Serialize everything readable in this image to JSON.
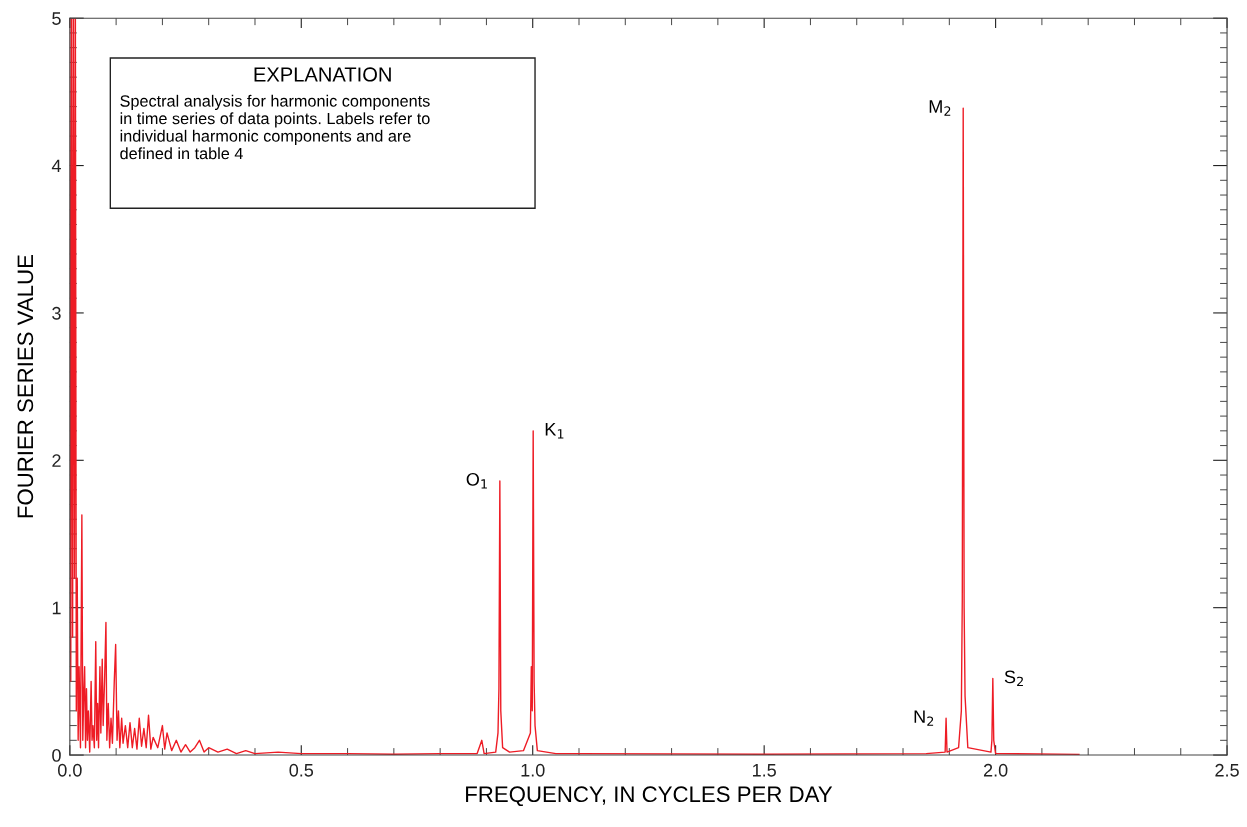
{
  "chart_data": {
    "type": "line",
    "xlabel": "FREQUENCY, IN CYCLES PER DAY",
    "ylabel": "FOURIER SERIES VALUE",
    "xlim": [
      0,
      2.5
    ],
    "ylim": [
      0,
      5
    ],
    "xticks": [
      {
        "value": 0,
        "label": "0.0"
      },
      {
        "value": 0.5,
        "label": "0.5"
      },
      {
        "value": 1,
        "label": "1.0"
      },
      {
        "value": 1.5,
        "label": "1.5"
      },
      {
        "value": 2,
        "label": "2.0"
      },
      {
        "value": 2.5,
        "label": "2.5"
      }
    ],
    "yticks": [
      0,
      1,
      2,
      3,
      4,
      5
    ],
    "grid": false,
    "marker": "none",
    "line_style": "solid",
    "annotations": [
      "EXPLANATION",
      "Spectral analysis for harmonic components\nin time series of data points. Labels refer to\nindividual harmonic components and are\ndefined in table 4",
      {
        "text": "O$_{1}$",
        "x": 0.929,
        "y": 1.86
      },
      {
        "text": "K$_{1}$",
        "x": 1.001,
        "y": 2.2
      },
      {
        "text": "N$_{2}$",
        "x": 1.893,
        "y": 0.25
      },
      {
        "text": "M$_{2}$",
        "x": 1.93,
        "y": 4.39
      },
      {
        "text": "S$_{2}$",
        "x": 1.994,
        "y": 0.52
      }
    ],
    "series": [
      {
        "color": "#ee1c25",
        "x": [
          0,
          0.002,
          0.004,
          0.006,
          0.008,
          0.01,
          0.012,
          0.014,
          0.016,
          0.018,
          0.02,
          0.023,
          0.026,
          0.028,
          0.03,
          0.032,
          0.034,
          0.036,
          0.038,
          0.04,
          0.043,
          0.046,
          0.048,
          0.05,
          0.053,
          0.056,
          0.058,
          0.06,
          0.062,
          0.065,
          0.067,
          0.07,
          0.072,
          0.075,
          0.078,
          0.08,
          0.083,
          0.086,
          0.089,
          0.092,
          0.096,
          0.099,
          0.102,
          0.105,
          0.108,
          0.112,
          0.115,
          0.12,
          0.125,
          0.13,
          0.135,
          0.14,
          0.145,
          0.15,
          0.155,
          0.16,
          0.165,
          0.17,
          0.175,
          0.18,
          0.19,
          0.2,
          0.205,
          0.21,
          0.22,
          0.23,
          0.24,
          0.25,
          0.26,
          0.27,
          0.28,
          0.29,
          0.3,
          0.32,
          0.34,
          0.36,
          0.38,
          0.4,
          0.45,
          0.5,
          0.6,
          0.7,
          0.8,
          0.88,
          0.89,
          0.895,
          0.92,
          0.925,
          0.927,
          0.929,
          0.931,
          0.935,
          0.95,
          0.98,
          0.995,
          0.997,
          0.999,
          1.001,
          1.003,
          1.005,
          1.01,
          1.05,
          1.1,
          1.5,
          1.85,
          1.891,
          1.893,
          1.895,
          1.92,
          1.926,
          1.928,
          1.93,
          1.932,
          1.934,
          1.94,
          1.99,
          1.992,
          1.994,
          1.996,
          2.0,
          2.18
        ],
        "values": [
          5,
          0.5,
          5,
          0.8,
          5,
          1.2,
          5,
          0.3,
          1.2,
          0.1,
          0.6,
          0.05,
          1.63,
          0.1,
          0.4,
          0.6,
          0.05,
          0.45,
          0.1,
          0.3,
          0.02,
          0.5,
          0.1,
          0.2,
          0.05,
          0.77,
          0.1,
          0.35,
          0.05,
          0.6,
          0.15,
          0.65,
          0.2,
          0.5,
          0.9,
          0.1,
          0.35,
          0.05,
          0.25,
          0.08,
          0.5,
          0.75,
          0.1,
          0.3,
          0.05,
          0.25,
          0.08,
          0.2,
          0.05,
          0.22,
          0.05,
          0.18,
          0.04,
          0.25,
          0.06,
          0.18,
          0.05,
          0.27,
          0.04,
          0.12,
          0.05,
          0.2,
          0.04,
          0.15,
          0.03,
          0.1,
          0.02,
          0.07,
          0.02,
          0.05,
          0.1,
          0.02,
          0.05,
          0.02,
          0.04,
          0.01,
          0.03,
          0.01,
          0.02,
          0.01,
          0.01,
          0.005,
          0.01,
          0.01,
          0.1,
          0.01,
          0.02,
          0.15,
          0.45,
          1.86,
          0.3,
          0.05,
          0.02,
          0.03,
          0.15,
          0.6,
          0.3,
          2.2,
          0.5,
          0.2,
          0.03,
          0.01,
          0.01,
          0.005,
          0.01,
          0.02,
          0.25,
          0.02,
          0.05,
          0.3,
          1.05,
          4.39,
          1.0,
          0.4,
          0.05,
          0.02,
          0.1,
          0.52,
          0.1,
          0.01,
          0.005
        ]
      }
    ]
  }
}
